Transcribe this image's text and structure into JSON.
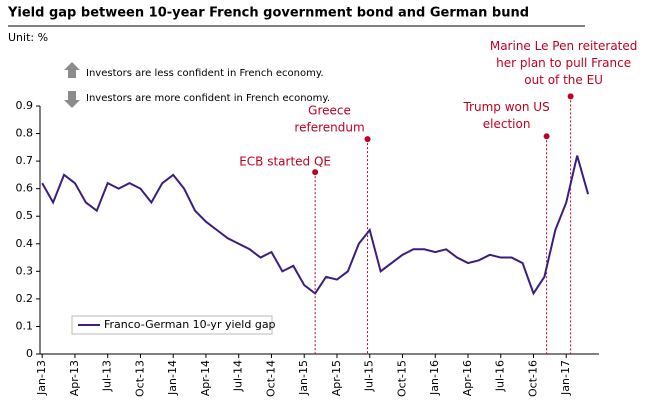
{
  "chart_data": {
    "type": "line",
    "title": "Yield gap between 10-year French government bond and German bund",
    "unit": "Unit:  %",
    "notes": [
      "Investors are less confident in French economy.",
      "Investors are more confident in French economy."
    ],
    "x": [
      0,
      1,
      2,
      3,
      4,
      5,
      6,
      7,
      8,
      9,
      10,
      11,
      12,
      13,
      14,
      15,
      16,
      17,
      18,
      19,
      20,
      21,
      22,
      23,
      24,
      25,
      26,
      27,
      28,
      29,
      30,
      31,
      32,
      33,
      34,
      35,
      36,
      37,
      38,
      39,
      40,
      41,
      42,
      43,
      44,
      45,
      46,
      47,
      48,
      49,
      50
    ],
    "series": [
      {
        "name": "Franco-German 10-yr yield gap",
        "color": "#3d1c80",
        "values": [
          0.62,
          0.55,
          0.65,
          0.62,
          0.55,
          0.52,
          0.62,
          0.6,
          0.62,
          0.6,
          0.55,
          0.62,
          0.65,
          0.6,
          0.52,
          0.48,
          0.45,
          0.42,
          0.4,
          0.38,
          0.35,
          0.37,
          0.3,
          0.32,
          0.25,
          0.22,
          0.28,
          0.27,
          0.3,
          0.4,
          0.45,
          0.3,
          0.33,
          0.36,
          0.38,
          0.38,
          0.37,
          0.38,
          0.35,
          0.33,
          0.34,
          0.36,
          0.35,
          0.35,
          0.33,
          0.22,
          0.28,
          0.45,
          0.55,
          0.72,
          0.58
        ]
      }
    ],
    "xlim": [
      -0.2,
      51
    ],
    "xticks": [
      {
        "value": 0,
        "label": "Jan-13"
      },
      {
        "value": 3,
        "label": "Apr-13"
      },
      {
        "value": 6,
        "label": "Jul-13"
      },
      {
        "value": 9,
        "label": "Oct-13"
      },
      {
        "value": 12,
        "label": "Jan-14"
      },
      {
        "value": 15,
        "label": "Apr-14"
      },
      {
        "value": 18,
        "label": "Jul-14"
      },
      {
        "value": 21,
        "label": "Oct-14"
      },
      {
        "value": 24,
        "label": "Jan-15"
      },
      {
        "value": 27,
        "label": "Apr-15"
      },
      {
        "value": 30,
        "label": "Jul-15"
      },
      {
        "value": 33,
        "label": "Oct-15"
      },
      {
        "value": 36,
        "label": "Jan-16"
      },
      {
        "value": 39,
        "label": "Apr-16"
      },
      {
        "value": 42,
        "label": "Jul-16"
      },
      {
        "value": 45,
        "label": "Oct-16"
      },
      {
        "value": 48,
        "label": "Jan-17"
      }
    ],
    "ylim": [
      0,
      0.9
    ],
    "yticks": [
      0,
      0.1,
      0.2,
      0.3,
      0.4,
      0.5,
      0.6,
      0.7,
      0.8,
      0.9
    ],
    "annotations": [
      {
        "text": [
          "ECB started QE"
        ],
        "x": 25,
        "y": 0.66
      },
      {
        "text": [
          "Greece",
          "referendum"
        ],
        "x": 29.8,
        "y": 0.78
      },
      {
        "text": [
          "Trump won US",
          "election"
        ],
        "x": 46.2,
        "y": 0.79
      },
      {
        "text": [
          "Marine Le Pen reiterated",
          "her plan to pull France",
          "out of the EU"
        ],
        "x": 48.4,
        "y": 0.935
      }
    ],
    "annotation_color": "#c00020",
    "legend": "lower left"
  }
}
